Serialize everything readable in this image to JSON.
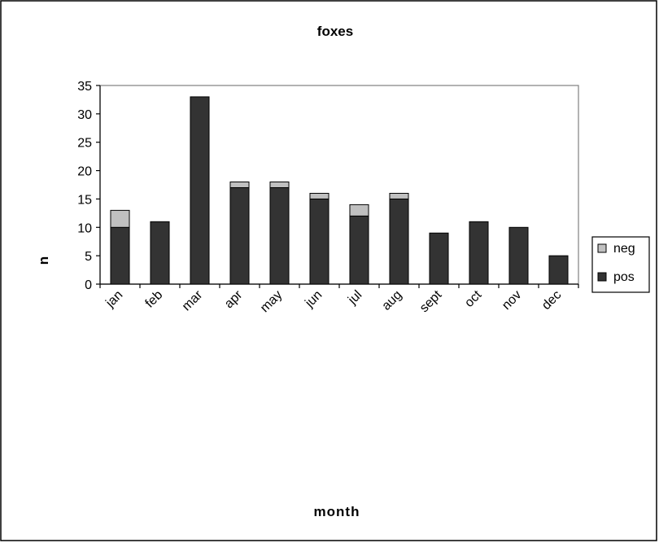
{
  "chart_data": {
    "type": "bar",
    "stacked": true,
    "title": "foxes",
    "xlabel": "month",
    "ylabel": "n",
    "categories": [
      "jan",
      "feb",
      "mar",
      "apr",
      "may",
      "jun",
      "jul",
      "aug",
      "sept",
      "oct",
      "nov",
      "dec"
    ],
    "series": [
      {
        "name": "pos",
        "color": "#333333",
        "values": [
          10,
          11,
          33,
          17,
          17,
          15,
          12,
          15,
          9,
          11,
          10,
          5
        ]
      },
      {
        "name": "neg",
        "color": "#c0c0c0",
        "values": [
          3,
          0,
          0,
          1,
          1,
          1,
          2,
          1,
          0,
          0,
          0,
          0
        ]
      }
    ],
    "ylim": [
      0,
      35
    ],
    "yticks": [
      "0",
      "5",
      "10",
      "15",
      "20",
      "25",
      "30",
      "35"
    ],
    "grid": false,
    "legend": {
      "position": "right",
      "entries": [
        "neg",
        "pos"
      ]
    }
  }
}
